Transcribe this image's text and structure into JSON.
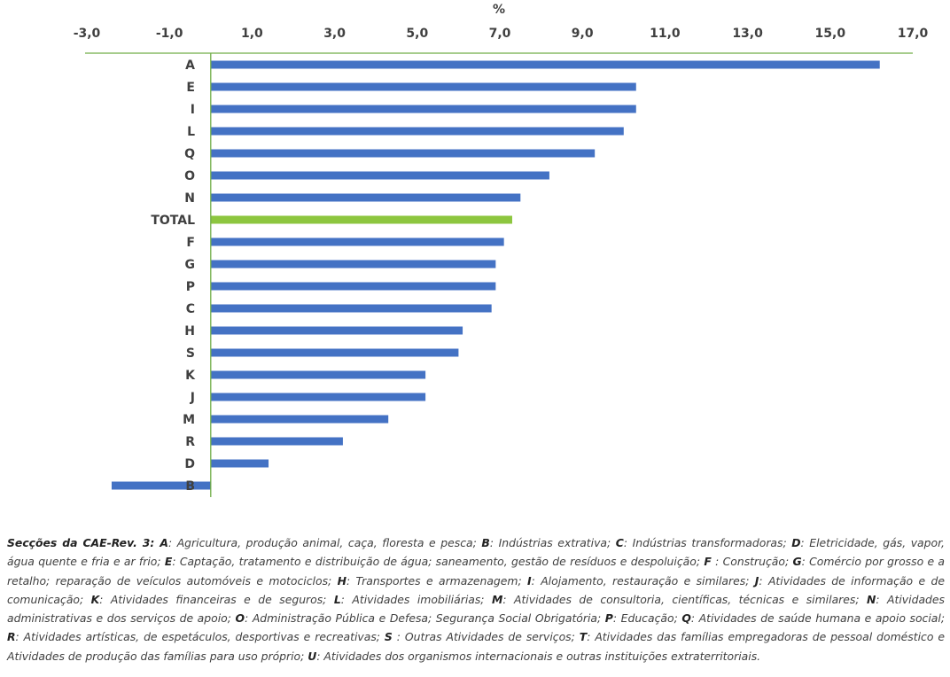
{
  "chart_data": {
    "type": "bar",
    "orientation": "horizontal",
    "title": "",
    "xlabel": "%",
    "ylabel": "",
    "xlim": [
      -3,
      17
    ],
    "xticks": [
      "-3,0",
      "-1,0",
      "1,0",
      "3,0",
      "5,0",
      "7,0",
      "9,0",
      "11,0",
      "13,0",
      "15,0",
      "17,0"
    ],
    "xtick_values": [
      -3,
      -1,
      1,
      3,
      5,
      7,
      9,
      11,
      13,
      15,
      17
    ],
    "axis_position": "top",
    "grid": false,
    "categories": [
      "A",
      "E",
      "I",
      "L",
      "Q",
      "O",
      "N",
      "TOTAL",
      "F",
      "G",
      "P",
      "C",
      "H",
      "S",
      "K",
      "J",
      "M",
      "R",
      "D",
      "B"
    ],
    "values": [
      16.2,
      10.3,
      10.3,
      10.0,
      9.3,
      8.2,
      7.5,
      7.3,
      7.1,
      6.9,
      6.9,
      6.8,
      6.1,
      6.0,
      5.2,
      5.2,
      4.3,
      3.2,
      1.4,
      -2.4
    ],
    "highlight": "TOTAL",
    "colors": {
      "bar": "#4472C4",
      "highlight": "#8DC63F",
      "axis": "#70AD47"
    }
  },
  "caption": {
    "lead": "Secções da CAE-Rev. 3: ",
    "items": [
      {
        "code": "A",
        "desc": ": Agricultura, produção animal, caça, floresta e pesca; "
      },
      {
        "code": "B",
        "desc": ": Indústrias extrativa; "
      },
      {
        "code": "C",
        "desc": ": Indústrias transformadoras; "
      },
      {
        "code": "D",
        "desc": ": Eletricidade, gás, vapor, água quente e fria e ar frio; "
      },
      {
        "code": "E",
        "desc": ": Captação, tratamento e distribuição de água; saneamento, gestão de resíduos e despoluição; "
      },
      {
        "code": "F",
        "desc": " : Construção; "
      },
      {
        "code": "G",
        "desc": ": Comércio por grosso e a retalho; reparação de veículos automóveis e motociclos; "
      },
      {
        "code": "H",
        "desc": ": Transportes e armazenagem; "
      },
      {
        "code": "I",
        "desc": ": Alojamento, restauração e similares; "
      },
      {
        "code": "J",
        "desc": ": Atividades de informação e de comunicação; "
      },
      {
        "code": "K",
        "desc": ": Atividades financeiras e de seguros; "
      },
      {
        "code": "L",
        "desc": ": Atividades imobiliárias; "
      },
      {
        "code": "M",
        "desc": ": Atividades de consultoria, científicas, técnicas e similares; "
      },
      {
        "code": "N",
        "desc": ": Atividades administrativas e dos serviços de apoio; "
      },
      {
        "code": "O",
        "desc": ": Administração Pública e Defesa; Segurança Social Obrigatória; "
      },
      {
        "code": "P",
        "desc": ": Educação; "
      },
      {
        "code": "Q",
        "desc": ": Atividades de saúde humana e apoio social; "
      },
      {
        "code": "R",
        "desc": ": Atividades artísticas, de espetáculos, desportivas e recreativas; "
      },
      {
        "code": "S",
        "desc": " : Outras Atividades de serviços; "
      },
      {
        "code": "T",
        "desc": ": Atividades das famílias empregadoras de pessoal doméstico e Atividades de produção das famílias para uso próprio; "
      },
      {
        "code": "U",
        "desc": ": Atividades dos organismos internacionais e outras instituições extraterritoriais."
      }
    ]
  }
}
